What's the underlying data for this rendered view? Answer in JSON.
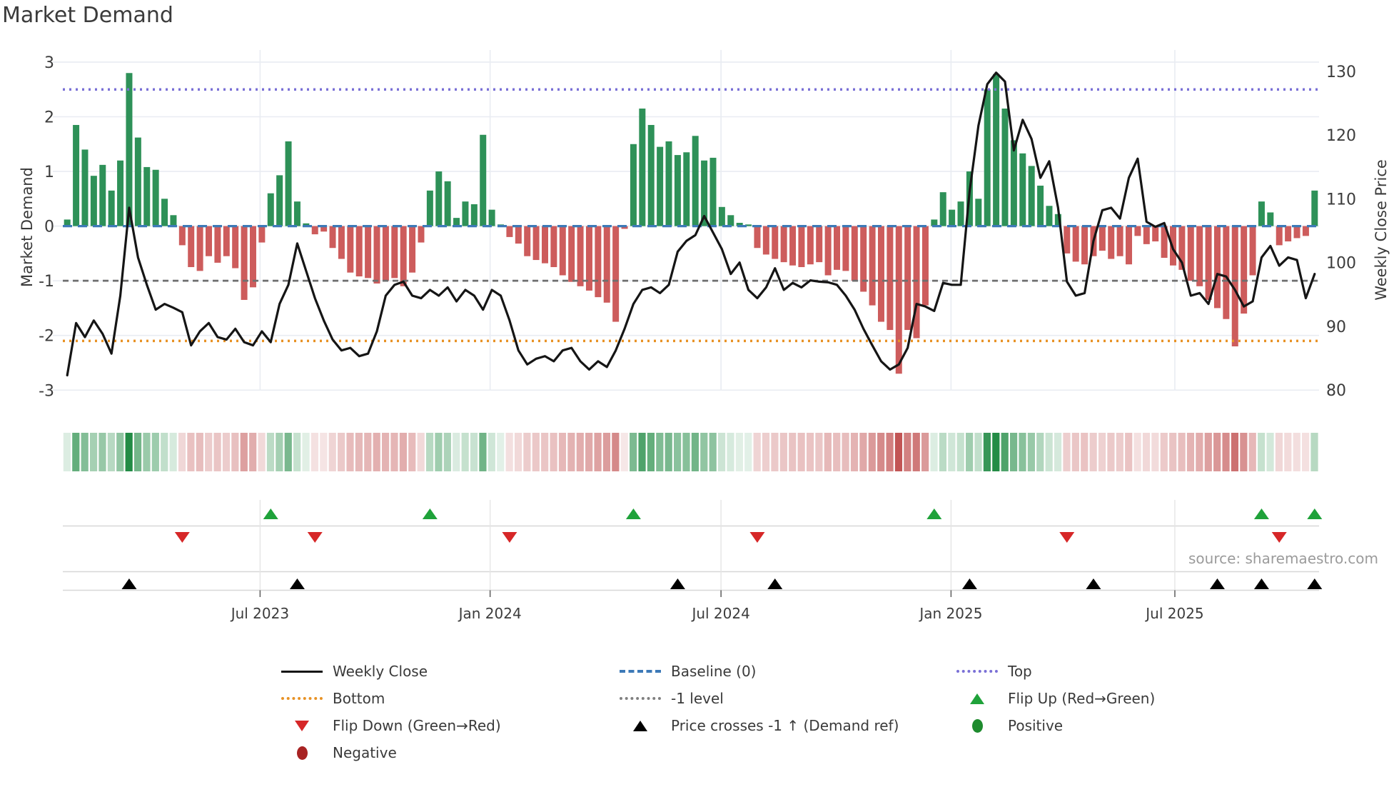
{
  "title": "Market Demand",
  "source": "source: sharemaestro.com",
  "left_axis": {
    "label": "Market Demand",
    "ticks": [
      3,
      2,
      1,
      0,
      -1,
      -2,
      -3
    ],
    "min": -3,
    "max": 3
  },
  "right_axis": {
    "label": "Weekly Close Price",
    "ticks": [
      130,
      120,
      110,
      100,
      90,
      80
    ],
    "min": 80,
    "max": 130
  },
  "x_axis": {
    "tick_labels": [
      "Jul 2023",
      "Jan 2024",
      "Jul 2024",
      "Jan 2025",
      "Jul 2025"
    ],
    "tick_weeks": [
      21.8,
      47.8,
      73.9,
      99.9,
      125.2
    ]
  },
  "legend": {
    "items": [
      {
        "label": "Weekly Close",
        "kind": "line-black",
        "col": 0,
        "row": 0
      },
      {
        "label": "Bottom",
        "kind": "dotted-orange",
        "col": 0,
        "row": 1
      },
      {
        "label": "Flip Down (Green→Red)",
        "kind": "triangle-down-red",
        "col": 0,
        "row": 2
      },
      {
        "label": "Negative",
        "kind": "circle-darkred",
        "col": 0,
        "row": 3
      },
      {
        "label": "Baseline (0)",
        "kind": "dashed-blue",
        "col": 1,
        "row": 0
      },
      {
        "label": "-1 level",
        "kind": "dotted-gray",
        "col": 1,
        "row": 1
      },
      {
        "label": "Price crosses -1 ↑ (Demand ref)",
        "kind": "triangle-up-black",
        "col": 1,
        "row": 2
      },
      {
        "label": "Top",
        "kind": "dotted-purple",
        "col": 2,
        "row": 0
      },
      {
        "label": "Flip Up (Red→Green)",
        "kind": "triangle-up-green",
        "col": 2,
        "row": 1
      },
      {
        "label": "Positive",
        "kind": "circle-green",
        "col": 2,
        "row": 2
      }
    ]
  },
  "colors": {
    "bar_positive": "#2e9158",
    "bar_negative": "#cd5c5c",
    "price_line": "#151515",
    "baseline": "#3d7ab8",
    "top_line": "#7a70d6",
    "bottom_line": "#e89225",
    "minus_one_line": "#6f6f6f",
    "flip_up": "#1fa23a",
    "flip_down": "#d62728",
    "price_cross": "#000000",
    "positive_dot": "#1e8b2e",
    "negative_dot": "#a82323",
    "grid": "#e9ecf2",
    "band_line": "#d7d7d7",
    "tick_text": "#3c3c3c",
    "muted_text": "#9b9b9b",
    "heat_green": [
      34,
      139,
      69
    ],
    "heat_red": [
      192,
      80,
      80
    ]
  },
  "chart_data": {
    "type": "bar",
    "title": "Market Demand",
    "xlabel": "",
    "ylabel_left": "Market Demand",
    "ylabel_right": "Weekly Close Price",
    "ylim_left": [
      -3,
      3
    ],
    "ylim_right": [
      80,
      130
    ],
    "grid": true,
    "legend_position": "bottom",
    "weeks": 142,
    "x_range_labels": [
      "Jul 2023",
      "Jan 2024",
      "Jul 2024",
      "Jan 2025",
      "Jul 2025"
    ],
    "reference_lines": {
      "baseline": 0,
      "top": 2.5,
      "bottom": -2.1,
      "minus_one": -1
    },
    "series": [
      {
        "name": "Market Demand",
        "type": "bar",
        "axis": "left",
        "values": [
          0.12,
          1.85,
          1.4,
          0.92,
          1.12,
          0.65,
          1.2,
          2.8,
          1.62,
          1.08,
          1.03,
          0.5,
          0.2,
          -0.35,
          -0.75,
          -0.82,
          -0.55,
          -0.67,
          -0.55,
          -0.77,
          -1.35,
          -1.12,
          -0.3,
          0.6,
          0.93,
          1.55,
          0.45,
          0.05,
          -0.15,
          -0.1,
          -0.4,
          -0.6,
          -0.85,
          -0.92,
          -0.95,
          -1.05,
          -1.0,
          -0.95,
          -1.1,
          -0.85,
          -0.3,
          0.65,
          1.0,
          0.82,
          0.15,
          0.45,
          0.4,
          1.67,
          0.3,
          0.03,
          -0.2,
          -0.32,
          -0.55,
          -0.62,
          -0.68,
          -0.75,
          -0.9,
          -1.02,
          -1.1,
          -1.18,
          -1.3,
          -1.4,
          -1.75,
          -0.05,
          1.5,
          2.15,
          1.85,
          1.45,
          1.55,
          1.3,
          1.35,
          1.65,
          1.2,
          1.25,
          0.35,
          0.2,
          0.06,
          0.03,
          -0.4,
          -0.52,
          -0.6,
          -0.66,
          -0.72,
          -0.75,
          -0.7,
          -0.66,
          -0.9,
          -0.8,
          -0.82,
          -1.0,
          -1.2,
          -1.45,
          -1.75,
          -1.9,
          -2.7,
          -1.9,
          -2.05,
          -1.45,
          0.12,
          0.62,
          0.3,
          0.45,
          1.0,
          0.5,
          2.5,
          2.78,
          2.15,
          1.57,
          1.33,
          1.1,
          0.74,
          0.37,
          0.22,
          -0.5,
          -0.65,
          -0.7,
          -0.55,
          -0.45,
          -0.6,
          -0.55,
          -0.7,
          -0.18,
          -0.33,
          -0.28,
          -0.58,
          -0.72,
          -0.8,
          -1.0,
          -1.1,
          -1.35,
          -1.5,
          -1.7,
          -2.2,
          -1.6,
          -0.9,
          0.45,
          0.25,
          -0.35,
          -0.28,
          -0.22,
          -0.18,
          0.65
        ]
      },
      {
        "name": "Weekly Close",
        "type": "line",
        "axis": "right",
        "values": [
          82.3,
          90.5,
          88.3,
          90.9,
          88.8,
          85.7,
          94.8,
          108.6,
          100.8,
          96.5,
          92.6,
          93.5,
          92.9,
          92.2,
          87.0,
          89.2,
          90.5,
          88.3,
          87.9,
          89.6,
          87.5,
          87.0,
          89.2,
          87.5,
          93.5,
          96.5,
          103.0,
          98.7,
          94.4,
          90.9,
          87.9,
          86.2,
          86.6,
          85.3,
          85.7,
          89.2,
          94.8,
          96.5,
          97.0,
          94.8,
          94.4,
          95.7,
          94.8,
          96.1,
          93.9,
          95.7,
          94.8,
          92.6,
          95.7,
          94.8,
          90.9,
          86.2,
          84.0,
          84.9,
          85.3,
          84.5,
          86.2,
          86.6,
          84.5,
          83.2,
          84.5,
          83.6,
          86.2,
          89.6,
          93.5,
          95.7,
          96.1,
          95.2,
          96.5,
          101.7,
          103.4,
          104.3,
          107.3,
          104.7,
          102.1,
          98.2,
          100.0,
          95.7,
          94.4,
          96.1,
          99.1,
          95.7,
          96.8,
          96.1,
          97.2,
          97.0,
          96.9,
          96.5,
          94.8,
          92.6,
          89.6,
          87.0,
          84.5,
          83.2,
          84.0,
          86.6,
          93.5,
          93.1,
          92.4,
          96.8,
          96.5,
          96.5,
          111.2,
          121.5,
          128.0,
          129.8,
          128.4,
          117.6,
          122.4,
          119.4,
          113.3,
          115.9,
          108.6,
          97.0,
          94.8,
          95.2,
          103.4,
          108.2,
          108.6,
          106.9,
          113.3,
          116.3,
          106.4,
          105.6,
          106.2,
          102.1,
          100.0,
          94.8,
          95.2,
          93.5,
          98.2,
          97.8,
          95.7,
          93.1,
          93.9,
          100.8,
          102.6,
          99.5,
          100.8,
          100.4,
          94.4,
          98.2
        ]
      }
    ],
    "markers": {
      "flip_up_weeks": [
        23,
        41,
        64,
        98,
        135,
        141
      ],
      "flip_down_weeks": [
        13,
        28,
        50,
        78,
        113,
        137
      ],
      "price_cross_weeks": [
        7,
        26,
        69,
        80,
        102,
        116,
        130,
        135,
        141
      ]
    },
    "heatmap": "weekly demand strip: green intensity for positive values, red intensity for negative values"
  }
}
